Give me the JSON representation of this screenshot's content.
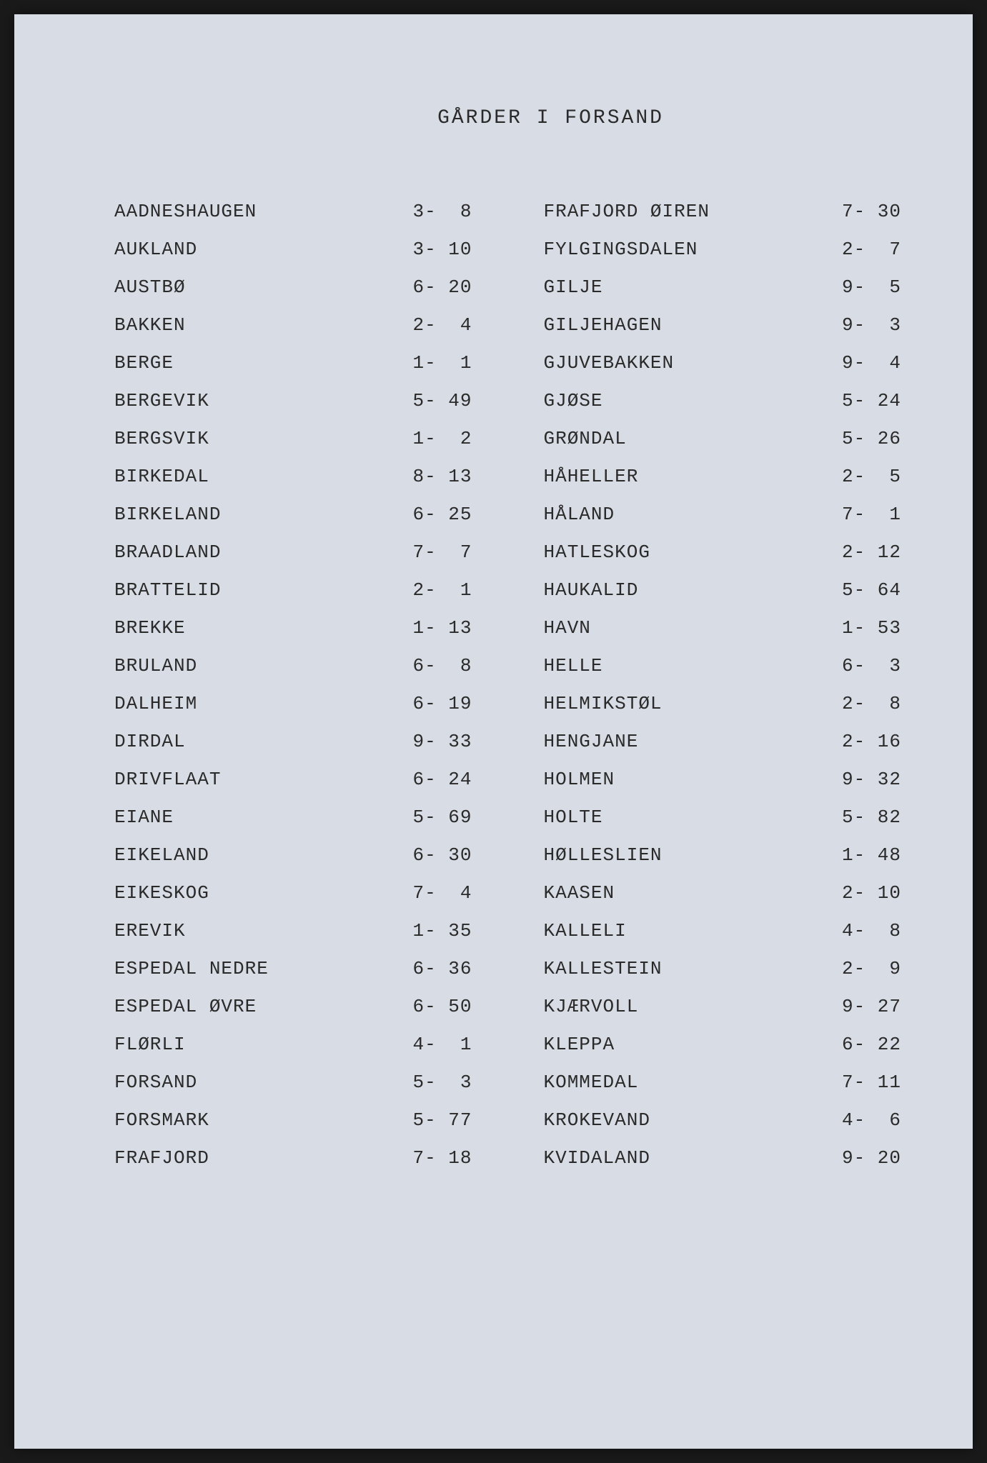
{
  "title": "GÅRDER I FORSAND",
  "left_column": [
    {
      "name": "AADNESHAUGEN",
      "value": "3-  8"
    },
    {
      "name": "AUKLAND",
      "value": "3- 10"
    },
    {
      "name": "AUSTBØ",
      "value": "6- 20"
    },
    {
      "name": "BAKKEN",
      "value": "2-  4"
    },
    {
      "name": "BERGE",
      "value": "1-  1"
    },
    {
      "name": "BERGEVIK",
      "value": "5- 49"
    },
    {
      "name": "BERGSVIK",
      "value": "1-  2"
    },
    {
      "name": "BIRKEDAL",
      "value": "8- 13"
    },
    {
      "name": "BIRKELAND",
      "value": "6- 25"
    },
    {
      "name": "BRAADLAND",
      "value": "7-  7"
    },
    {
      "name": "BRATTELID",
      "value": "2-  1"
    },
    {
      "name": "BREKKE",
      "value": "1- 13"
    },
    {
      "name": "BRULAND",
      "value": "6-  8"
    },
    {
      "name": "DALHEIM",
      "value": "6- 19"
    },
    {
      "name": "DIRDAL",
      "value": "9- 33"
    },
    {
      "name": "DRIVFLAAT",
      "value": "6- 24"
    },
    {
      "name": "EIANE",
      "value": "5- 69"
    },
    {
      "name": "EIKELAND",
      "value": "6- 30"
    },
    {
      "name": "EIKESKOG",
      "value": "7-  4"
    },
    {
      "name": "EREVIK",
      "value": "1- 35"
    },
    {
      "name": "ESPEDAL NEDRE",
      "value": "6- 36"
    },
    {
      "name": "ESPEDAL ØVRE",
      "value": "6- 50"
    },
    {
      "name": "FLØRLI",
      "value": "4-  1"
    },
    {
      "name": "FORSAND",
      "value": "5-  3"
    },
    {
      "name": "FORSMARK",
      "value": "5- 77"
    },
    {
      "name": "FRAFJORD",
      "value": "7- 18"
    }
  ],
  "right_column": [
    {
      "name": "FRAFJORD ØIREN",
      "value": "7- 30"
    },
    {
      "name": "FYLGINGSDALEN",
      "value": "2-  7"
    },
    {
      "name": "GILJE",
      "value": "9-  5"
    },
    {
      "name": "GILJEHAGEN",
      "value": "9-  3"
    },
    {
      "name": "GJUVEBAKKEN",
      "value": "9-  4"
    },
    {
      "name": "GJØSE",
      "value": "5- 24"
    },
    {
      "name": "GRØNDAL",
      "value": "5- 26"
    },
    {
      "name": "HÅHELLER",
      "value": "2-  5"
    },
    {
      "name": "HÅLAND",
      "value": "7-  1"
    },
    {
      "name": "HATLESKOG",
      "value": "2- 12"
    },
    {
      "name": "HAUKALID",
      "value": "5- 64"
    },
    {
      "name": "HAVN",
      "value": "1- 53"
    },
    {
      "name": "HELLE",
      "value": "6-  3"
    },
    {
      "name": "HELMIKSTØL",
      "value": "2-  8"
    },
    {
      "name": "HENGJANE",
      "value": "2- 16"
    },
    {
      "name": "HOLMEN",
      "value": "9- 32"
    },
    {
      "name": "HOLTE",
      "value": "5- 82"
    },
    {
      "name": "HØLLESLIEN",
      "value": "1- 48"
    },
    {
      "name": "KAASEN",
      "value": "2- 10"
    },
    {
      "name": "KALLELI",
      "value": "4-  8"
    },
    {
      "name": "KALLESTEIN",
      "value": "2-  9"
    },
    {
      "name": "KJÆRVOLL",
      "value": "9- 27"
    },
    {
      "name": "KLEPPA",
      "value": "6- 22"
    },
    {
      "name": "KOMMEDAL",
      "value": "7- 11"
    },
    {
      "name": "KROKEVAND",
      "value": "4-  6"
    },
    {
      "name": "KVIDALAND",
      "value": "9- 20"
    }
  ]
}
